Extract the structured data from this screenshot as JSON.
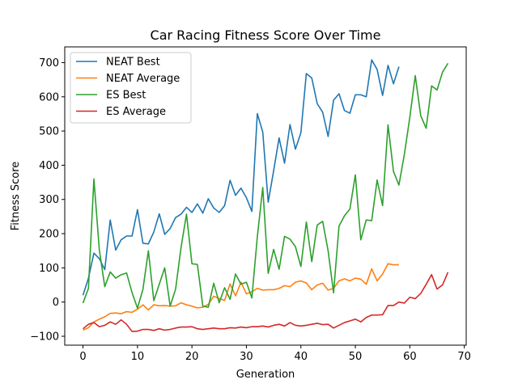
{
  "chart_data": {
    "type": "line",
    "title": "Car Racing Fitness Score Over Time",
    "xlabel": "Generation",
    "ylabel": "Fitness Score",
    "xlim": [
      -3.35,
      70.35
    ],
    "ylim": [
      -126,
      746
    ],
    "xticks": [
      0,
      10,
      20,
      30,
      40,
      50,
      60,
      70
    ],
    "yticks": [
      -100,
      0,
      100,
      200,
      300,
      400,
      500,
      600,
      700
    ],
    "grid": false,
    "legend_position": "top-left",
    "series": [
      {
        "name": "NEAT Best",
        "color": "#1f77b4",
        "x_start": 0,
        "values": [
          20,
          70,
          143,
          127,
          95,
          240,
          152,
          182,
          193,
          193,
          270,
          172,
          170,
          205,
          258,
          198,
          215,
          247,
          257,
          277,
          262,
          287,
          260,
          302,
          275,
          262,
          282,
          356,
          312,
          333,
          305,
          265,
          551,
          497,
          292,
          384,
          480,
          406,
          519,
          447,
          495,
          668,
          655,
          580,
          555,
          484,
          590,
          609,
          560,
          552,
          606,
          606,
          600,
          708,
          680,
          604,
          692,
          638,
          688
        ]
      },
      {
        "name": "NEAT Average",
        "color": "#ff7f0e",
        "x_start": 0,
        "values": [
          -82,
          -75,
          -58,
          -50,
          -43,
          -33,
          -32,
          -34,
          -28,
          -30,
          -21,
          -8,
          -23,
          -8,
          -11,
          -10,
          -12,
          -11,
          -2,
          -8,
          -12,
          -17,
          -15,
          -7,
          17,
          10,
          5,
          53,
          18,
          58,
          24,
          30,
          40,
          35,
          36,
          36,
          40,
          48,
          45,
          58,
          62,
          56,
          36,
          50,
          55,
          35,
          40,
          62,
          68,
          62,
          70,
          67,
          52,
          97,
          62,
          82,
          112,
          109,
          109
        ]
      },
      {
        "name": "ES Best",
        "color": "#2ca02c",
        "x_start": 0,
        "values": [
          -3,
          40,
          360,
          152,
          45,
          88,
          70,
          80,
          85,
          28,
          -18,
          37,
          150,
          4,
          52,
          100,
          -12,
          38,
          160,
          257,
          112,
          110,
          -12,
          -15,
          55,
          -2,
          42,
          8,
          82,
          52,
          58,
          12,
          190,
          335,
          84,
          154,
          96,
          192,
          184,
          162,
          104,
          234,
          118,
          225,
          236,
          150,
          27,
          222,
          252,
          272,
          372,
          182,
          240,
          238,
          357,
          282,
          518,
          382,
          342,
          432,
          540,
          662,
          545,
          508,
          632,
          620,
          672,
          698
        ]
      },
      {
        "name": "ES Average",
        "color": "#d62728",
        "x_start": 0,
        "values": [
          -78,
          -65,
          -60,
          -72,
          -68,
          -58,
          -65,
          -52,
          -65,
          -86,
          -85,
          -80,
          -80,
          -83,
          -78,
          -82,
          -80,
          -76,
          -73,
          -73,
          -72,
          -78,
          -80,
          -78,
          -76,
          -78,
          -78,
          -75,
          -76,
          -73,
          -75,
          -72,
          -72,
          -70,
          -73,
          -68,
          -65,
          -70,
          -60,
          -68,
          -70,
          -68,
          -65,
          -62,
          -66,
          -65,
          -76,
          -68,
          -60,
          -55,
          -50,
          -58,
          -45,
          -38,
          -38,
          -37,
          -10,
          -10,
          0,
          -3,
          14,
          10,
          25,
          52,
          80,
          38,
          50,
          87
        ]
      }
    ]
  }
}
